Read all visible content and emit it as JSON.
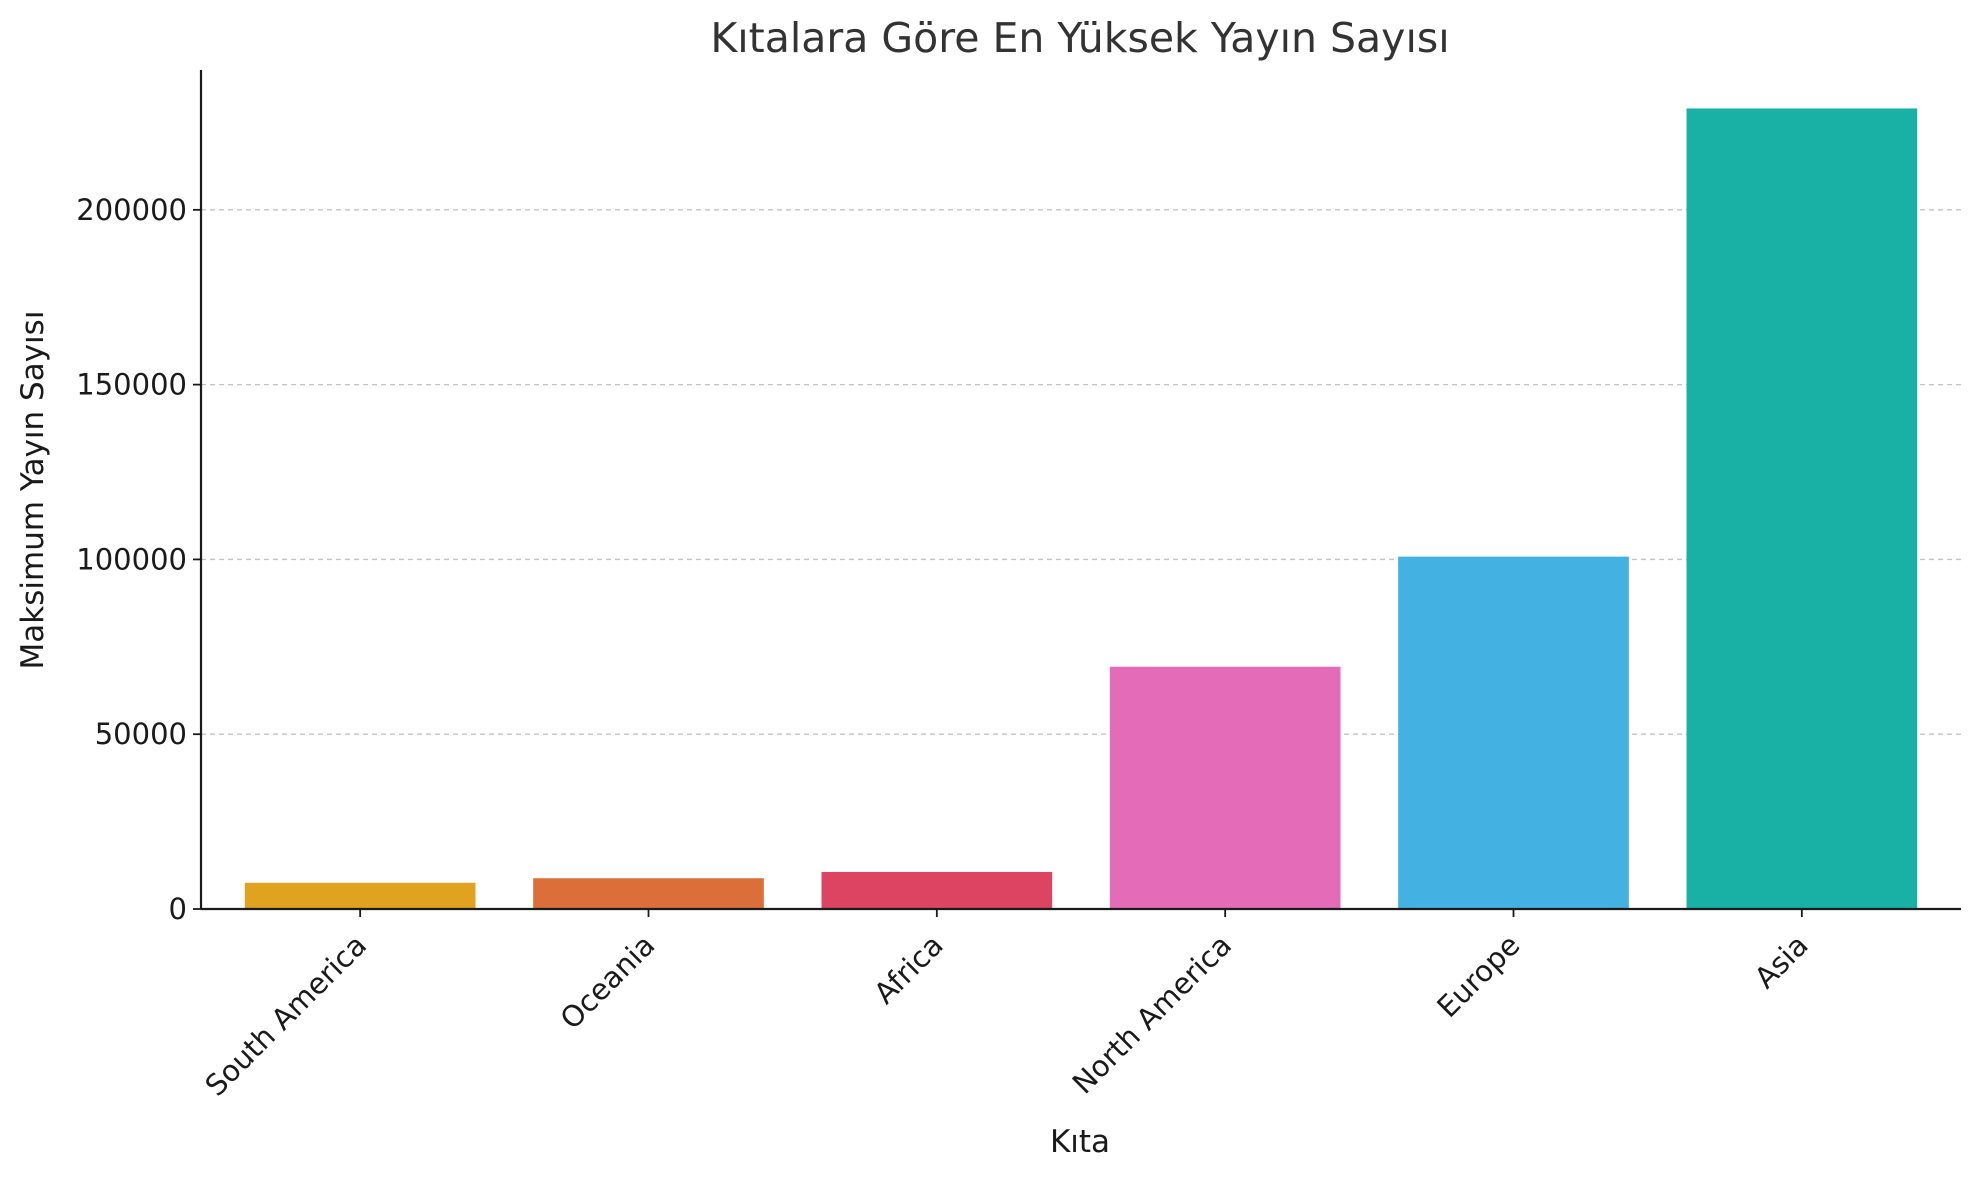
{
  "chart_data": {
    "type": "bar",
    "title": "Kıtalara Göre En Yüksek Yayın Sayısı",
    "xlabel": "Kıta",
    "ylabel": "Maksimum Yayın Sayısı",
    "categories": [
      "South America",
      "Oceania",
      "Africa",
      "North America",
      "Europe",
      "Asia"
    ],
    "values": [
      7500,
      8800,
      10600,
      69300,
      100800,
      229000
    ],
    "colors": [
      "#e0a21f",
      "#dc6f39",
      "#dc4462",
      "#e36bb8",
      "#43b1e2",
      "#19b1a6"
    ],
    "ylim": [
      0,
      240000
    ],
    "yticks": [
      0,
      50000,
      100000,
      150000,
      200000
    ],
    "ytick_labels": [
      "0",
      "50000",
      "100000",
      "150000",
      "200000"
    ],
    "grid": "y-dashed",
    "legend": "none"
  }
}
